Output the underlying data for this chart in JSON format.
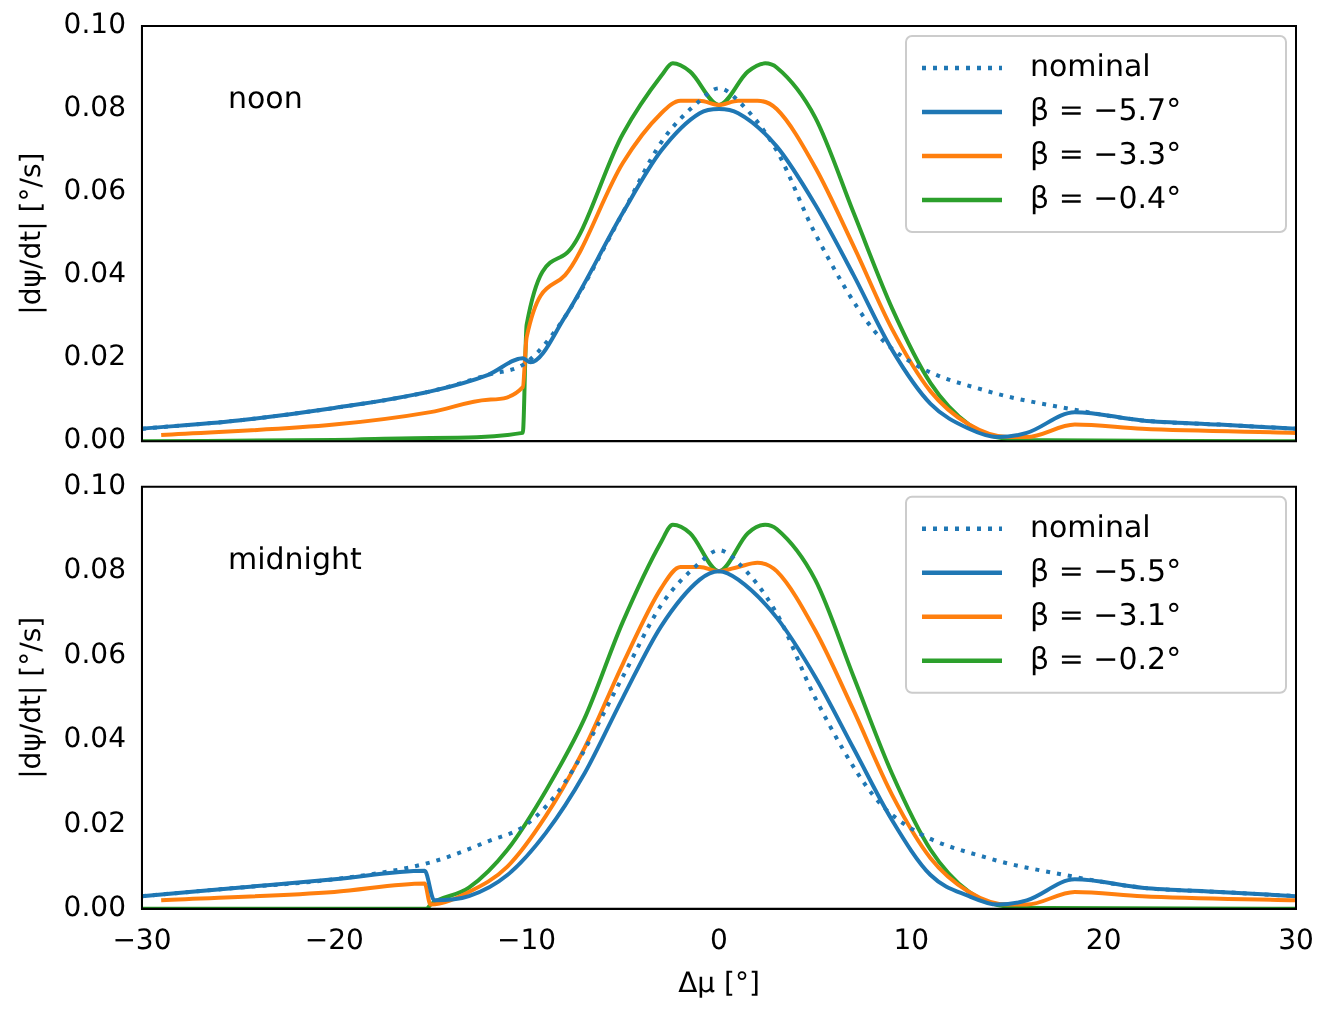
{
  "chart_data": [
    {
      "type": "line",
      "ylabel": "|dψ/dt| [°/s]",
      "annotations": [
        "noon"
      ],
      "legend": "top right",
      "tick_labels": "y",
      "grid": false,
      "xlim": [
        -30,
        30
      ],
      "xticks": [
        {
          "value": -30,
          "label": null
        },
        {
          "value": -20,
          "label": null
        },
        {
          "value": -10,
          "label": null
        },
        {
          "value": 0,
          "label": null
        },
        {
          "value": 10,
          "label": null
        },
        {
          "value": 20,
          "label": null
        },
        {
          "value": 30,
          "label": null
        }
      ],
      "ylim": [
        0,
        0.1
      ],
      "yticks": [
        {
          "value": 0,
          "label": "0.00"
        },
        {
          "value": 0.02,
          "label": "0.02"
        },
        {
          "value": 0.04,
          "label": "0.04"
        },
        {
          "value": 0.06,
          "label": "0.06"
        },
        {
          "value": 0.08,
          "label": "0.08"
        },
        {
          "value": 0.1,
          "label": "0.10"
        }
      ],
      "series": [
        {
          "name": "nominal",
          "color": "#1f77b4",
          "line_style": "dotted",
          "x": [
            -30,
            -25,
            -20,
            -15,
            -12,
            -10,
            -8,
            -5,
            -3,
            -1,
            0,
            1,
            3,
            5,
            8,
            10,
            14,
            18,
            22,
            26,
            30
          ],
          "values": [
            0.003,
            0.005,
            0.008,
            0.012,
            0.016,
            0.019,
            0.03,
            0.055,
            0.072,
            0.082,
            0.085,
            0.082,
            0.07,
            0.05,
            0.027,
            0.019,
            0.012,
            0.008,
            0.005,
            0.004,
            0.003
          ]
        },
        {
          "name": "β = −5.7°",
          "color": "#1f77b4",
          "line_style": "solid",
          "x": [
            -30,
            -25,
            -20,
            -15,
            -12,
            -10.2,
            -9.8,
            -8,
            -5,
            -3,
            -1,
            0,
            1,
            3,
            5,
            7,
            9,
            11,
            13,
            14.5,
            16,
            18.5,
            22,
            26,
            30
          ],
          "values": [
            0.003,
            0.005,
            0.008,
            0.012,
            0.016,
            0.02,
            0.019,
            0.03,
            0.055,
            0.07,
            0.079,
            0.08,
            0.079,
            0.071,
            0.057,
            0.04,
            0.022,
            0.009,
            0.003,
            0.001,
            0.002,
            0.007,
            0.005,
            0.004,
            0.003
          ]
        },
        {
          "name": "β = −3.3°",
          "color": "#ff7f0e",
          "line_style": "solid",
          "x": [
            -29,
            -20,
            -15,
            -12,
            -10.2,
            -10,
            -8,
            -5,
            -3,
            -2,
            -1,
            0,
            1,
            2,
            3,
            5,
            7,
            9,
            11,
            13,
            15,
            16,
            18.5,
            22,
            30
          ],
          "values": [
            0.0015,
            0.004,
            0.007,
            0.01,
            0.013,
            0.025,
            0.04,
            0.067,
            0.079,
            0.082,
            0.082,
            0.081,
            0.082,
            0.082,
            0.08,
            0.066,
            0.047,
            0.027,
            0.012,
            0.004,
            0.001,
            0.001,
            0.004,
            0.003,
            0.002
          ]
        },
        {
          "name": "β = −0.4°",
          "color": "#2ca02c",
          "line_style": "solid",
          "x": [
            -30,
            -20,
            -15,
            -10.2,
            -10,
            -8,
            -5,
            -3,
            -2.4,
            -1.5,
            0,
            1.5,
            2.4,
            3,
            5,
            7,
            9,
            11,
            13,
            15,
            17,
            30
          ],
          "values": [
            0,
            0.0003,
            0.0008,
            0.002,
            0.028,
            0.045,
            0.074,
            0.088,
            0.091,
            0.089,
            0.081,
            0.089,
            0.091,
            0.09,
            0.078,
            0.055,
            0.032,
            0.014,
            0.004,
            0.0005,
            0.0002,
            0
          ]
        }
      ]
    },
    {
      "type": "line",
      "ylabel": "|dψ/dt| [°/s]",
      "xlabel": "Δμ [°]",
      "annotations": [
        "midnight"
      ],
      "legend": "top right",
      "grid": false,
      "xlim": [
        -30,
        30
      ],
      "xticks": [
        {
          "value": -30,
          "label": "−30"
        },
        {
          "value": -20,
          "label": "−20"
        },
        {
          "value": -10,
          "label": "−10"
        },
        {
          "value": 0,
          "label": "0"
        },
        {
          "value": 10,
          "label": "10"
        },
        {
          "value": 20,
          "label": "20"
        },
        {
          "value": 30,
          "label": "30"
        }
      ],
      "ylim": [
        0,
        0.1
      ],
      "yticks": [
        {
          "value": 0,
          "label": "0.00"
        },
        {
          "value": 0.02,
          "label": "0.02"
        },
        {
          "value": 0.04,
          "label": "0.04"
        },
        {
          "value": 0.06,
          "label": "0.06"
        },
        {
          "value": 0.08,
          "label": "0.08"
        },
        {
          "value": 0.1,
          "label": "0.10"
        }
      ],
      "series": [
        {
          "name": "nominal",
          "color": "#1f77b4",
          "line_style": "dotted",
          "x": [
            -30,
            -25,
            -20,
            -15,
            -12,
            -10,
            -8,
            -5,
            -3,
            -1,
            0,
            1,
            3,
            5,
            8,
            10,
            14,
            18,
            22,
            26,
            30
          ],
          "values": [
            0.003,
            0.005,
            0.007,
            0.011,
            0.016,
            0.02,
            0.03,
            0.055,
            0.072,
            0.082,
            0.085,
            0.082,
            0.07,
            0.05,
            0.027,
            0.019,
            0.012,
            0.008,
            0.005,
            0.004,
            0.003
          ]
        },
        {
          "name": "β = −5.5°",
          "color": "#1f77b4",
          "line_style": "solid",
          "x": [
            -30,
            -25,
            -20,
            -15.3,
            -14.8,
            -13,
            -11,
            -9,
            -7,
            -5,
            -3,
            -1,
            0,
            1,
            3,
            5,
            7,
            9,
            11,
            13,
            14.5,
            16,
            18.5,
            22,
            26,
            30
          ],
          "values": [
            0.003,
            0.005,
            0.007,
            0.009,
            0.002,
            0.003,
            0.008,
            0.018,
            0.032,
            0.05,
            0.067,
            0.078,
            0.08,
            0.078,
            0.069,
            0.055,
            0.038,
            0.021,
            0.008,
            0.003,
            0.001,
            0.002,
            0.007,
            0.005,
            0.004,
            0.003
          ]
        },
        {
          "name": "β = −3.1°",
          "color": "#ff7f0e",
          "line_style": "solid",
          "x": [
            -29,
            -20,
            -15.3,
            -15,
            -13,
            -11,
            -9,
            -7,
            -5,
            -3,
            -2,
            -1,
            0,
            1,
            2,
            3,
            5,
            7,
            9,
            11,
            13,
            15,
            16,
            18.5,
            22,
            30
          ],
          "values": [
            0.002,
            0.004,
            0.006,
            0.001,
            0.004,
            0.01,
            0.022,
            0.038,
            0.058,
            0.076,
            0.081,
            0.081,
            0.08,
            0.081,
            0.082,
            0.08,
            0.066,
            0.047,
            0.027,
            0.012,
            0.004,
            0.001,
            0.001,
            0.004,
            0.003,
            0.002
          ]
        },
        {
          "name": "β = −0.2°",
          "color": "#2ca02c",
          "line_style": "solid",
          "x": [
            -30,
            -20,
            -15.2,
            -15,
            -13,
            -11,
            -9,
            -7,
            -5,
            -3,
            -2.4,
            -1.5,
            0,
            1.5,
            2.4,
            3,
            5,
            7,
            9,
            11,
            13,
            15,
            17,
            30
          ],
          "values": [
            0,
            0,
            0,
            0.001,
            0.005,
            0.014,
            0.028,
            0.045,
            0.068,
            0.087,
            0.091,
            0.089,
            0.08,
            0.089,
            0.091,
            0.09,
            0.078,
            0.055,
            0.032,
            0.014,
            0.004,
            0.0005,
            0.0002,
            0
          ]
        }
      ]
    }
  ]
}
